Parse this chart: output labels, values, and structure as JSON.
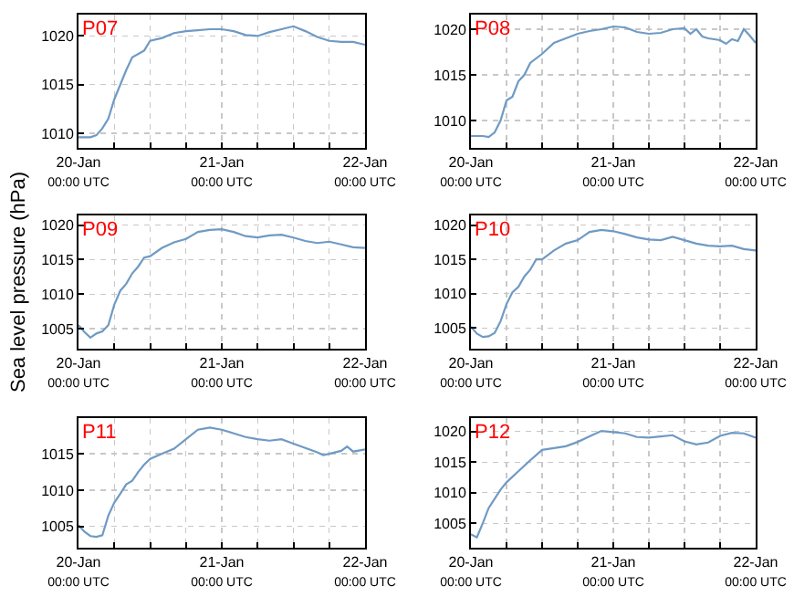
{
  "chart_data": [
    {
      "type": "line",
      "annotations": [
        "P07"
      ],
      "xlim": [
        "--01-20T00:00",
        "--01-22T00:00"
      ],
      "xticks": [
        {
          "value": "--01-20T00:00",
          "label": "20-Jan\n00:00 UTC"
        },
        {
          "value": "--01-20T06:00",
          "label": null
        },
        {
          "value": "--01-20T12:00",
          "label": null
        },
        {
          "value": "--01-20T18:00",
          "label": null
        },
        {
          "value": "--01-21T00:00",
          "label": "21-Jan\n00:00 UTC"
        },
        {
          "value": "--01-21T06:00",
          "label": null
        },
        {
          "value": "--01-21T12:00",
          "label": null
        },
        {
          "value": "--01-21T18:00",
          "label": null
        },
        {
          "value": "--01-22T00:00",
          "label": "22-Jan\n00:00 UTC"
        }
      ],
      "ylim": [
        1008.5,
        1022.2
      ],
      "yticks": [
        1010,
        1015,
        1020
      ],
      "grid": true,
      "marker": "none",
      "line_style": "solid",
      "x": [
        "--01-20T00:00",
        "--01-20T02:00",
        "--01-20T03:00",
        "--01-20T04:00",
        "--01-20T05:00",
        "--01-20T06:00",
        "--01-20T07:00",
        "--01-20T08:00",
        "--01-20T09:00",
        "--01-20T11:00",
        "--01-20T12:00",
        "--01-20T14:00",
        "--01-20T16:00",
        "--01-20T18:00",
        "--01-20T20:00",
        "--01-20T22:00",
        "--01-21T00:00",
        "--01-21T02:00",
        "--01-21T04:00",
        "--01-21T06:00",
        "--01-21T08:00",
        "--01-21T10:00",
        "--01-21T12:00",
        "--01-21T14:00",
        "--01-21T16:00",
        "--01-21T18:00",
        "--01-21T20:00",
        "--01-21T22:00",
        "--01-22T00:00"
      ],
      "series": [
        {
          "color": "#6f9ac4",
          "values": [
            1009.6,
            1009.6,
            1009.8,
            1010.5,
            1011.5,
            1013.5,
            1015,
            1016.5,
            1017.8,
            1018.5,
            1019.5,
            1019.8,
            1020.3,
            1020.5,
            1020.6,
            1020.7,
            1020.7,
            1020.5,
            1020.1,
            1020,
            1020.4,
            1020.7,
            1021,
            1020.5,
            1019.9,
            1019.5,
            1019.4,
            1019.4,
            1019.1
          ]
        }
      ]
    },
    {
      "type": "line",
      "annotations": [
        "P08"
      ],
      "xlim": [
        "--01-20T00:00",
        "--01-22T00:00"
      ],
      "xticks": [
        {
          "value": "--01-20T00:00",
          "label": "20-Jan\n00:00 UTC"
        },
        {
          "value": "--01-20T06:00",
          "label": null
        },
        {
          "value": "--01-20T12:00",
          "label": null
        },
        {
          "value": "--01-20T18:00",
          "label": null
        },
        {
          "value": "--01-21T00:00",
          "label": "21-Jan\n00:00 UTC"
        },
        {
          "value": "--01-21T06:00",
          "label": null
        },
        {
          "value": "--01-21T12:00",
          "label": null
        },
        {
          "value": "--01-21T18:00",
          "label": null
        },
        {
          "value": "--01-22T00:00",
          "label": "22-Jan\n00:00 UTC"
        }
      ],
      "ylim": [
        1007,
        1021.6
      ],
      "yticks": [
        1010,
        1015,
        1020
      ],
      "grid": true,
      "marker": "none",
      "line_style": "solid",
      "x": [
        "--01-20T00:00",
        "--01-20T02:00",
        "--01-20T03:00",
        "--01-20T04:00",
        "--01-20T05:00",
        "--01-20T06:00",
        "--01-20T07:00",
        "--01-20T08:00",
        "--01-20T09:00",
        "--01-20T10:00",
        "--01-20T12:00",
        "--01-20T14:00",
        "--01-20T16:00",
        "--01-20T18:00",
        "--01-20T20:00",
        "--01-20T22:00",
        "--01-21T00:00",
        "--01-21T02:00",
        "--01-21T04:00",
        "--01-21T06:00",
        "--01-21T08:00",
        "--01-21T10:00",
        "--01-21T12:00",
        "--01-21T13:00",
        "--01-21T14:00",
        "--01-21T15:00",
        "--01-21T16:00",
        "--01-21T18:00",
        "--01-21T19:00",
        "--01-21T20:00",
        "--01-21T21:00",
        "--01-21T22:00",
        "--01-21T23:00",
        "--01-22T00:00"
      ],
      "series": [
        {
          "color": "#6f9ac4",
          "values": [
            1008.3,
            1008.3,
            1008.2,
            1008.7,
            1010,
            1012.2,
            1012.6,
            1014.3,
            1015,
            1016.3,
            1017.3,
            1018.5,
            1019,
            1019.5,
            1019.8,
            1020,
            1020.3,
            1020.2,
            1019.7,
            1019.5,
            1019.6,
            1020,
            1020.1,
            1019.5,
            1020,
            1019.2,
            1019,
            1018.8,
            1018.4,
            1018.9,
            1018.7,
            1020,
            1019.3,
            1018.5
          ]
        }
      ]
    },
    {
      "type": "line",
      "annotations": [
        "P09"
      ],
      "ylabel": "Sea level pressure (hPa)",
      "xlim": [
        "--01-20T00:00",
        "--01-22T00:00"
      ],
      "xticks": [
        {
          "value": "--01-20T00:00",
          "label": "20-Jan\n00:00 UTC"
        },
        {
          "value": "--01-20T06:00",
          "label": null
        },
        {
          "value": "--01-20T12:00",
          "label": null
        },
        {
          "value": "--01-20T18:00",
          "label": null
        },
        {
          "value": "--01-21T00:00",
          "label": "21-Jan\n00:00 UTC"
        },
        {
          "value": "--01-21T06:00",
          "label": null
        },
        {
          "value": "--01-21T12:00",
          "label": null
        },
        {
          "value": "--01-21T18:00",
          "label": null
        },
        {
          "value": "--01-22T00:00",
          "label": "22-Jan\n00:00 UTC"
        }
      ],
      "ylim": [
        1002.1,
        1021.4
      ],
      "yticks": [
        1005,
        1010,
        1015,
        1020
      ],
      "grid": true,
      "marker": "none",
      "line_style": "solid",
      "x": [
        "--01-20T00:00",
        "--01-20T01:00",
        "--01-20T02:00",
        "--01-20T03:00",
        "--01-20T04:00",
        "--01-20T05:00",
        "--01-20T06:00",
        "--01-20T07:00",
        "--01-20T08:00",
        "--01-20T09:00",
        "--01-20T10:00",
        "--01-20T11:00",
        "--01-20T12:00",
        "--01-20T14:00",
        "--01-20T16:00",
        "--01-20T18:00",
        "--01-20T20:00",
        "--01-20T22:00",
        "--01-21T00:00",
        "--01-21T02:00",
        "--01-21T04:00",
        "--01-21T06:00",
        "--01-21T08:00",
        "--01-21T10:00",
        "--01-21T12:00",
        "--01-21T14:00",
        "--01-21T16:00",
        "--01-21T18:00",
        "--01-21T20:00",
        "--01-21T22:00",
        "--01-22T00:00"
      ],
      "series": [
        {
          "color": "#6f9ac4",
          "values": [
            1005.5,
            1004.5,
            1003.7,
            1004.3,
            1004.6,
            1005.5,
            1008.5,
            1010.5,
            1011.5,
            1013,
            1014,
            1015.3,
            1015.5,
            1016.7,
            1017.5,
            1018,
            1019,
            1019.3,
            1019.4,
            1019,
            1018.4,
            1018.2,
            1018.5,
            1018.6,
            1018.2,
            1017.7,
            1017.4,
            1017.6,
            1017.2,
            1016.8,
            1016.7
          ]
        }
      ]
    },
    {
      "type": "line",
      "annotations": [
        "P10"
      ],
      "xlim": [
        "--01-20T00:00",
        "--01-22T00:00"
      ],
      "xticks": [
        {
          "value": "--01-20T00:00",
          "label": "20-Jan\n00:00 UTC"
        },
        {
          "value": "--01-20T06:00",
          "label": null
        },
        {
          "value": "--01-20T12:00",
          "label": null
        },
        {
          "value": "--01-20T18:00",
          "label": null
        },
        {
          "value": "--01-21T00:00",
          "label": "21-Jan\n00:00 UTC"
        },
        {
          "value": "--01-21T06:00",
          "label": null
        },
        {
          "value": "--01-21T12:00",
          "label": null
        },
        {
          "value": "--01-21T18:00",
          "label": null
        },
        {
          "value": "--01-22T00:00",
          "label": "22-Jan\n00:00 UTC"
        }
      ],
      "ylim": [
        1002,
        1021.4
      ],
      "yticks": [
        1005,
        1010,
        1015,
        1020
      ],
      "grid": true,
      "marker": "none",
      "line_style": "solid",
      "x": [
        "--01-20T00:00",
        "--01-20T01:00",
        "--01-20T02:00",
        "--01-20T03:00",
        "--01-20T04:00",
        "--01-20T05:00",
        "--01-20T06:00",
        "--01-20T07:00",
        "--01-20T08:00",
        "--01-20T09:00",
        "--01-20T10:00",
        "--01-20T11:00",
        "--01-20T12:00",
        "--01-20T14:00",
        "--01-20T16:00",
        "--01-20T18:00",
        "--01-20T20:00",
        "--01-20T22:00",
        "--01-21T00:00",
        "--01-21T02:00",
        "--01-21T04:00",
        "--01-21T06:00",
        "--01-21T08:00",
        "--01-21T10:00",
        "--01-21T12:00",
        "--01-21T14:00",
        "--01-21T16:00",
        "--01-21T18:00",
        "--01-21T20:00",
        "--01-21T22:00",
        "--01-22T00:00"
      ],
      "series": [
        {
          "color": "#6f9ac4",
          "values": [
            1005.2,
            1004.2,
            1003.7,
            1003.8,
            1004.3,
            1006,
            1008.5,
            1010.2,
            1011,
            1012.5,
            1013.5,
            1015,
            1015,
            1016.3,
            1017.3,
            1017.8,
            1019,
            1019.3,
            1019.1,
            1018.7,
            1018.2,
            1017.9,
            1017.8,
            1018.3,
            1017.8,
            1017.3,
            1017,
            1016.9,
            1017,
            1016.5,
            1016.3
          ]
        }
      ]
    },
    {
      "type": "line",
      "annotations": [
        "P11"
      ],
      "xlim": [
        "--01-20T00:00",
        "--01-22T00:00"
      ],
      "xticks": [
        {
          "value": "--01-20T00:00",
          "label": "20-Jan\n00:00 UTC"
        },
        {
          "value": "--01-20T06:00",
          "label": null
        },
        {
          "value": "--01-20T12:00",
          "label": null
        },
        {
          "value": "--01-20T18:00",
          "label": null
        },
        {
          "value": "--01-21T00:00",
          "label": "21-Jan\n00:00 UTC"
        },
        {
          "value": "--01-21T06:00",
          "label": null
        },
        {
          "value": "--01-21T12:00",
          "label": null
        },
        {
          "value": "--01-21T18:00",
          "label": null
        },
        {
          "value": "--01-22T00:00",
          "label": "22-Jan\n00:00 UTC"
        }
      ],
      "ylim": [
        1002.1,
        1019.9
      ],
      "yticks": [
        1005,
        1010,
        1015
      ],
      "grid": true,
      "marker": "none",
      "line_style": "solid",
      "x": [
        "--01-20T00:00",
        "--01-20T01:00",
        "--01-20T02:00",
        "--01-20T03:00",
        "--01-20T04:00",
        "--01-20T05:00",
        "--01-20T06:00",
        "--01-20T07:00",
        "--01-20T08:00",
        "--01-20T09:00",
        "--01-20T10:00",
        "--01-20T11:00",
        "--01-20T12:00",
        "--01-20T14:00",
        "--01-20T16:00",
        "--01-20T18:00",
        "--01-20T20:00",
        "--01-20T22:00",
        "--01-21T00:00",
        "--01-21T02:00",
        "--01-21T04:00",
        "--01-21T06:00",
        "--01-21T08:00",
        "--01-21T10:00",
        "--01-21T12:00",
        "--01-21T14:00",
        "--01-21T16:00",
        "--01-21T17:00",
        "--01-21T18:00",
        "--01-21T20:00",
        "--01-21T21:00",
        "--01-21T22:00",
        "--01-22T00:00"
      ],
      "series": [
        {
          "color": "#6f9ac4",
          "values": [
            1005.2,
            1004.3,
            1003.7,
            1003.6,
            1003.8,
            1006.5,
            1008.3,
            1009.5,
            1010.8,
            1011.3,
            1012.5,
            1013.5,
            1014.3,
            1015,
            1015.7,
            1017,
            1018.3,
            1018.6,
            1018.3,
            1017.8,
            1017.3,
            1017,
            1016.8,
            1017,
            1016.4,
            1015.8,
            1015.2,
            1014.8,
            1015,
            1015.4,
            1016,
            1015.3,
            1015.6
          ]
        }
      ]
    },
    {
      "type": "line",
      "annotations": [
        "P12"
      ],
      "xlim": [
        "--01-20T00:00",
        "--01-22T00:00"
      ],
      "xticks": [
        {
          "value": "--01-20T00:00",
          "label": "20-Jan\n00:00 UTC"
        },
        {
          "value": "--01-20T06:00",
          "label": null
        },
        {
          "value": "--01-20T12:00",
          "label": null
        },
        {
          "value": "--01-20T18:00",
          "label": null
        },
        {
          "value": "--01-21T00:00",
          "label": "21-Jan\n00:00 UTC"
        },
        {
          "value": "--01-21T06:00",
          "label": null
        },
        {
          "value": "--01-21T12:00",
          "label": null
        },
        {
          "value": "--01-21T18:00",
          "label": null
        },
        {
          "value": "--01-22T00:00",
          "label": "22-Jan\n00:00 UTC"
        }
      ],
      "ylim": [
        1001,
        1022.2
      ],
      "yticks": [
        1005,
        1010,
        1015,
        1020
      ],
      "grid": true,
      "marker": "none",
      "line_style": "solid",
      "x": [
        "--01-20T00:00",
        "--01-20T01:00",
        "--01-20T02:00",
        "--01-20T03:00",
        "--01-20T04:00",
        "--01-20T05:00",
        "--01-20T06:00",
        "--01-20T08:00",
        "--01-20T10:00",
        "--01-20T12:00",
        "--01-20T14:00",
        "--01-20T16:00",
        "--01-20T18:00",
        "--01-20T20:00",
        "--01-20T22:00",
        "--01-21T00:00",
        "--01-21T02:00",
        "--01-21T04:00",
        "--01-21T06:00",
        "--01-21T08:00",
        "--01-21T10:00",
        "--01-21T12:00",
        "--01-21T14:00",
        "--01-21T16:00",
        "--01-21T18:00",
        "--01-21T20:00",
        "--01-21T22:00",
        "--01-22T00:00"
      ],
      "series": [
        {
          "color": "#6f9ac4",
          "values": [
            1003.2,
            1002.7,
            1005,
            1007.5,
            1009,
            1010.5,
            1011.7,
            1013.5,
            1015.3,
            1017,
            1017.3,
            1017.6,
            1018.3,
            1019.2,
            1020.1,
            1019.9,
            1019.7,
            1019.1,
            1019,
            1019.2,
            1019.4,
            1018.4,
            1017.9,
            1018.2,
            1019.3,
            1019.8,
            1019.7,
            1019
          ]
        }
      ]
    }
  ]
}
